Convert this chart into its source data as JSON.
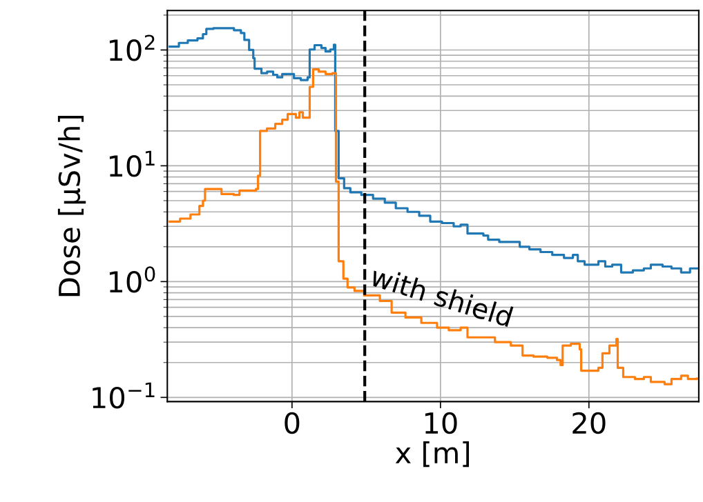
{
  "chart_data": {
    "type": "step",
    "xlabel": "x [m]",
    "ylabel": "Dose [μSv/h]",
    "xlim": [
      -8.4,
      27.4
    ],
    "xticks": [
      0,
      10,
      20
    ],
    "ylim": [
      0.092,
      219
    ],
    "yticks": [
      {
        "value": 0.1,
        "label": "10$^{−1}$"
      },
      {
        "value": 1,
        "label": "10$^{0}$"
      },
      {
        "value": 10,
        "label": "10$^{1}$"
      },
      {
        "value": 100,
        "label": "10$^{2}$"
      }
    ],
    "log": "y",
    "grid": true,
    "line_style": "solid",
    "marker": "none",
    "ref_lines": [
      {
        "axis": "x",
        "value": 4.9,
        "color": "#000000",
        "line_style": "dashed"
      }
    ],
    "annotations": [
      "with shield"
    ],
    "series": [
      {
        "color": "#1f77b4",
        "x": [
          -8.24,
          -7.62,
          -7.02,
          -6.37,
          -6.0,
          -5.77,
          -5.3,
          -4.51,
          -3.91,
          -3.44,
          -3.21,
          -2.89,
          -2.61,
          -2.52,
          -2.06,
          -1.68,
          -1.27,
          -0.99,
          -0.66,
          -0.11,
          0.13,
          0.59,
          1.05,
          1.19,
          1.52,
          1.98,
          2.26,
          2.58,
          2.82,
          2.91,
          3.14,
          3.51,
          3.93,
          4.67,
          5.46,
          6.25,
          6.99,
          7.78,
          8.57,
          9.31,
          10.1,
          10.89,
          11.36,
          11.82,
          12.89,
          13.21,
          13.96,
          14.74,
          15.34,
          15.99,
          16.74,
          17.53,
          18.32,
          18.92,
          19.25,
          19.71,
          20.64,
          21.1,
          21.57,
          22.17,
          22.96,
          23.7,
          24.17,
          24.96,
          25.56,
          26.21,
          26.81,
          27.28
        ],
        "values": [
          107,
          115,
          121,
          126,
          137,
          152,
          154,
          154,
          148,
          140,
          122,
          100,
          85,
          69,
          63,
          65,
          61,
          58,
          62,
          62,
          57,
          55,
          58,
          101,
          110,
          104,
          97,
          101,
          111,
          20,
          7.8,
          6.4,
          5.9,
          5.6,
          5.2,
          4.8,
          4.3,
          4.0,
          3.7,
          3.3,
          3.2,
          3.0,
          3.1,
          2.6,
          2.5,
          2.3,
          2.2,
          2.2,
          2.0,
          1.9,
          1.8,
          1.7,
          1.6,
          1.7,
          1.5,
          1.4,
          1.5,
          1.35,
          1.4,
          1.2,
          1.25,
          1.3,
          1.4,
          1.35,
          1.3,
          1.2,
          1.3,
          1.3
        ]
      },
      {
        "color": "#ff7f0e",
        "x": [
          -8.24,
          -7.54,
          -6.84,
          -6.24,
          -6.0,
          -5.86,
          -4.75,
          -3.92,
          -3.54,
          -2.43,
          -2.29,
          -2.15,
          -1.69,
          -1.13,
          -0.66,
          -0.29,
          0.26,
          0.5,
          0.73,
          1.1,
          1.19,
          1.42,
          1.8,
          2.26,
          2.72,
          2.96,
          3.14,
          3.46,
          3.74,
          4.21,
          4.86,
          5.92,
          6.71,
          7.64,
          8.71,
          9.77,
          10.56,
          11.36,
          11.82,
          12.89,
          13.67,
          14.74,
          15.53,
          16.27,
          17.2,
          17.85,
          18.09,
          18.23,
          18.78,
          19.38,
          19.48,
          20.64,
          20.91,
          21.38,
          21.85,
          21.94,
          22.31,
          23.1,
          23.7,
          24.17,
          25.1,
          25.56,
          26.21,
          26.67,
          27.28
        ],
        "values": [
          3.3,
          3.5,
          3.8,
          4.5,
          5.0,
          6.3,
          5.7,
          5.6,
          6.1,
          6.3,
          8.2,
          20,
          21,
          23,
          25,
          28,
          26,
          29,
          26,
          26,
          48,
          68,
          65,
          62,
          63,
          7.3,
          1.5,
          1.06,
          0.89,
          0.83,
          0.76,
          0.68,
          0.54,
          0.49,
          0.44,
          0.4,
          0.38,
          0.4,
          0.33,
          0.33,
          0.3,
          0.28,
          0.23,
          0.225,
          0.22,
          0.21,
          0.19,
          0.28,
          0.29,
          0.26,
          0.17,
          0.18,
          0.24,
          0.28,
          0.32,
          0.18,
          0.15,
          0.144,
          0.15,
          0.136,
          0.13,
          0.144,
          0.154,
          0.144,
          0.145
        ]
      }
    ]
  }
}
